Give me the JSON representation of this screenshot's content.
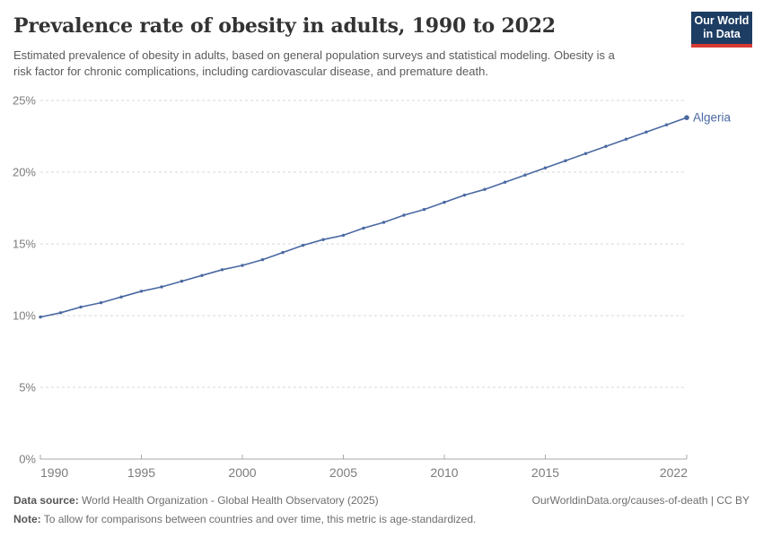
{
  "header": {
    "title": "Prevalence rate of obesity in adults, 1990 to 2022",
    "subtitle": "Estimated prevalence of obesity in adults, based on general population surveys and statistical modeling. Obesity is a risk factor for chronic complications, including cardiovascular disease, and premature death.",
    "logo": {
      "line1": "Our World",
      "line2": "in Data",
      "bg_color": "#1d3d63",
      "accent_color": "#d73a34"
    }
  },
  "chart_data": {
    "type": "line",
    "title": "Prevalence rate of obesity in adults, 1990 to 2022",
    "xlabel": "",
    "ylabel": "",
    "xlim": [
      1990,
      2022
    ],
    "ylim": [
      0,
      25
    ],
    "grid": "horizontal-dashed",
    "legend_position": "end-of-line-label",
    "x": [
      1990,
      1991,
      1992,
      1993,
      1994,
      1995,
      1996,
      1997,
      1998,
      1999,
      2000,
      2001,
      2002,
      2003,
      2004,
      2005,
      2006,
      2007,
      2008,
      2009,
      2010,
      2011,
      2012,
      2013,
      2014,
      2015,
      2016,
      2017,
      2018,
      2019,
      2020,
      2021,
      2022
    ],
    "series": [
      {
        "name": "Algeria",
        "color": "#4a69a2",
        "unit": "%",
        "values": [
          9.9,
          10.2,
          10.6,
          10.9,
          11.3,
          11.7,
          12.0,
          12.4,
          12.8,
          13.2,
          13.5,
          13.9,
          14.4,
          14.9,
          15.3,
          15.6,
          16.1,
          16.5,
          17.0,
          17.4,
          17.9,
          18.4,
          18.8,
          19.3,
          19.8,
          20.3,
          20.8,
          21.3,
          21.8,
          22.3,
          22.8,
          23.3,
          23.8
        ]
      }
    ],
    "end_label": "Algeria",
    "yticks": [
      {
        "value": 0,
        "label": "0%"
      },
      {
        "value": 5,
        "label": "5%"
      },
      {
        "value": 10,
        "label": "10%"
      },
      {
        "value": 15,
        "label": "15%"
      },
      {
        "value": 20,
        "label": "20%"
      },
      {
        "value": 25,
        "label": "25%"
      }
    ],
    "xticks": [
      {
        "value": 1990,
        "label": "1990"
      },
      {
        "value": 1995,
        "label": "1995"
      },
      {
        "value": 2000,
        "label": "2000"
      },
      {
        "value": 2005,
        "label": "2005"
      },
      {
        "value": 2010,
        "label": "2010"
      },
      {
        "value": 2015,
        "label": "2015"
      },
      {
        "value": 2022,
        "label": "2022"
      }
    ],
    "style": {
      "grid_color": "#d7d7d7",
      "axis_color": "#a8a8a8",
      "tick_label_color": "#7c7c7c"
    }
  },
  "footer": {
    "datasource_label": "Data source:",
    "datasource_value": " World Health Organization - Global Health Observatory (2025)",
    "note_label": "Note:",
    "note_value": " To allow for comparisons between countries and over time, this metric is age-standardized.",
    "right_text": "OurWorldinData.org/causes-of-death | CC BY"
  }
}
